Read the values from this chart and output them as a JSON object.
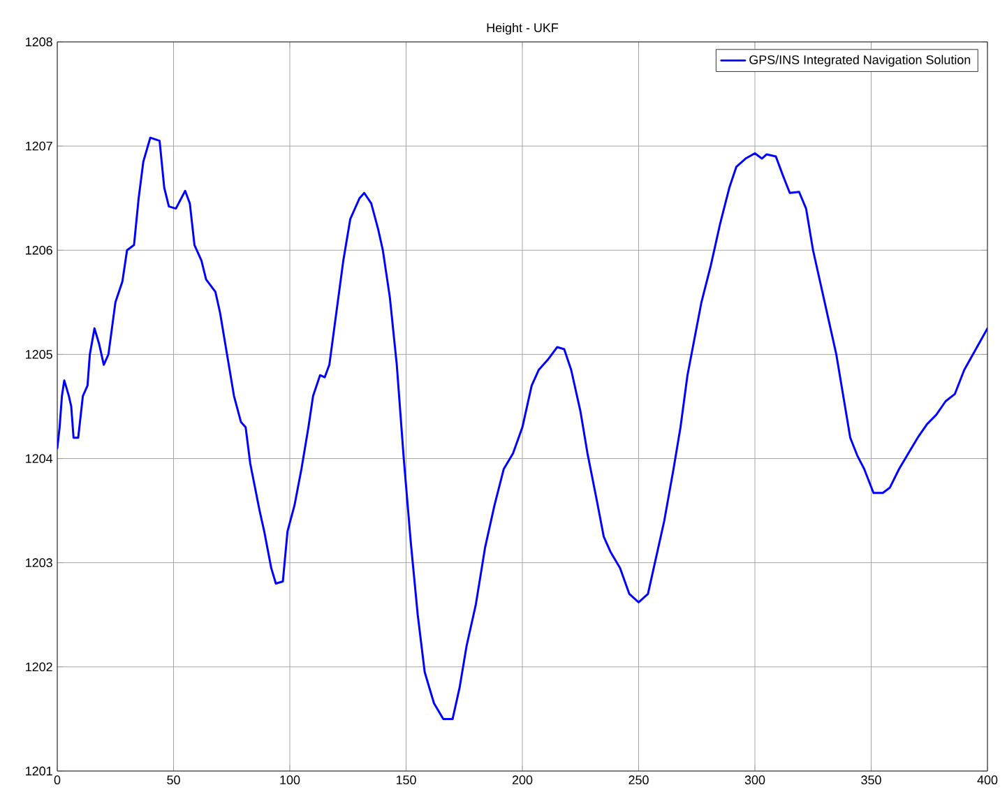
{
  "chart_data": {
    "type": "line",
    "title": "Height - UKF",
    "x": [
      0,
      1,
      2,
      3,
      5,
      6,
      7,
      9,
      11,
      13,
      14,
      16,
      18,
      20,
      22,
      25,
      28,
      30,
      33,
      35,
      37,
      40,
      44,
      46,
      48,
      51,
      55,
      57,
      59,
      62,
      64,
      68,
      70,
      73,
      76,
      79,
      81,
      83,
      87,
      89,
      92,
      94,
      97,
      99,
      102,
      105,
      108,
      110,
      113,
      115,
      117,
      120,
      123,
      126,
      130,
      132,
      135,
      138,
      140,
      143,
      146,
      149,
      152,
      155,
      158,
      162,
      166,
      170,
      173,
      176,
      180,
      184,
      188,
      192,
      196,
      200,
      204,
      207,
      211,
      215,
      218,
      221,
      225,
      228,
      232,
      235,
      238,
      242,
      246,
      250,
      254,
      257,
      261,
      265,
      268,
      271,
      274,
      277,
      281,
      285,
      289,
      292,
      296,
      300,
      303,
      305,
      309,
      312,
      315,
      319,
      322,
      325,
      329,
      332,
      335,
      338,
      341,
      344,
      347,
      351,
      355,
      358,
      362,
      366,
      370,
      374,
      378,
      382,
      386,
      390,
      395,
      400
    ],
    "series": [
      {
        "name": "GPS/INS Integrated Navigation Solution",
        "color": "#0000ff",
        "values": [
          1204.1,
          1204.3,
          1204.6,
          1204.75,
          1204.6,
          1204.5,
          1204.2,
          1204.2,
          1204.6,
          1204.7,
          1205.0,
          1205.25,
          1205.1,
          1204.9,
          1205.0,
          1205.5,
          1205.7,
          1206.0,
          1206.05,
          1206.5,
          1206.85,
          1207.08,
          1207.05,
          1206.6,
          1206.42,
          1206.4,
          1206.57,
          1206.45,
          1206.05,
          1205.9,
          1205.72,
          1205.6,
          1205.4,
          1205.0,
          1204.6,
          1204.35,
          1204.3,
          1203.95,
          1203.5,
          1203.3,
          1202.95,
          1202.8,
          1202.82,
          1203.3,
          1203.55,
          1203.9,
          1204.3,
          1204.6,
          1204.8,
          1204.78,
          1204.9,
          1205.4,
          1205.9,
          1206.3,
          1206.5,
          1206.55,
          1206.45,
          1206.2,
          1206.0,
          1205.55,
          1204.9,
          1204.0,
          1203.2,
          1202.5,
          1201.95,
          1201.65,
          1201.5,
          1201.5,
          1201.8,
          1202.2,
          1202.6,
          1203.15,
          1203.55,
          1203.9,
          1204.05,
          1204.3,
          1204.7,
          1204.85,
          1204.95,
          1205.07,
          1205.05,
          1204.85,
          1204.45,
          1204.05,
          1203.6,
          1203.25,
          1203.1,
          1202.95,
          1202.7,
          1202.62,
          1202.7,
          1203.0,
          1203.4,
          1203.9,
          1204.3,
          1204.8,
          1205.15,
          1205.5,
          1205.85,
          1206.25,
          1206.6,
          1206.8,
          1206.88,
          1206.93,
          1206.88,
          1206.92,
          1206.9,
          1206.72,
          1206.55,
          1206.56,
          1206.4,
          1206.0,
          1205.6,
          1205.3,
          1205.0,
          1204.6,
          1204.2,
          1204.03,
          1203.9,
          1203.67,
          1203.67,
          1203.72,
          1203.9,
          1204.05,
          1204.2,
          1204.33,
          1204.42,
          1204.55,
          1204.62,
          1204.85,
          1205.05,
          1205.25
        ]
      }
    ],
    "xlim": [
      0,
      400
    ],
    "ylim": [
      1201,
      1208
    ],
    "xticks": [
      0,
      50,
      100,
      150,
      200,
      250,
      300,
      350,
      400
    ],
    "yticks": [
      1201,
      1202,
      1203,
      1204,
      1205,
      1206,
      1207,
      1208
    ],
    "grid": true,
    "legend": "top right",
    "marker": "none",
    "line_style": "solid"
  }
}
